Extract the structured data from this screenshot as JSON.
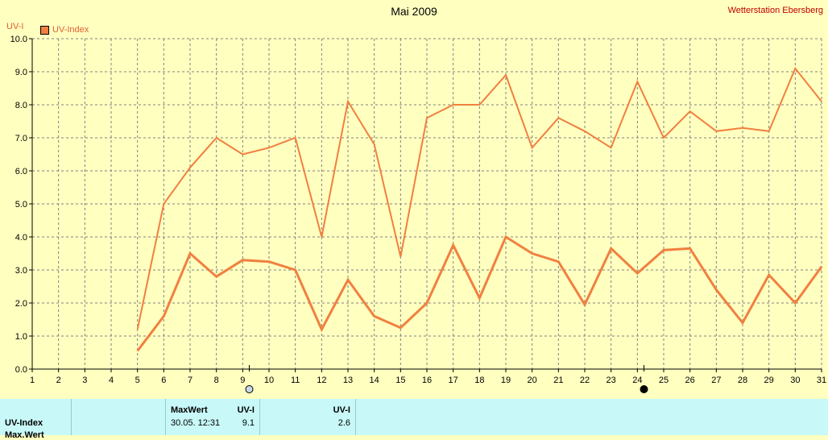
{
  "title": "Mai 2009",
  "station": "Wetterstation Ebersberg",
  "y_unit": "UV-I",
  "legend_label": "UV-Index",
  "colors": {
    "background": "#ffffc0",
    "series": "#f08040",
    "axis": "#000000",
    "grid": "#808080",
    "footer": "#c8f8f8",
    "station_text": "#c00000"
  },
  "chart_data": {
    "type": "line",
    "title": "Mai 2009",
    "ylabel": "UV-I",
    "xlabel": "",
    "x": [
      1,
      2,
      3,
      4,
      5,
      6,
      7,
      8,
      9,
      10,
      11,
      12,
      13,
      14,
      15,
      16,
      17,
      18,
      19,
      20,
      21,
      22,
      23,
      24,
      25,
      26,
      27,
      28,
      29,
      30,
      31
    ],
    "xlim": [
      1,
      31
    ],
    "ylim": [
      0,
      10
    ],
    "yticks": [
      "0.0",
      "1.0",
      "2.0",
      "3.0",
      "4.0",
      "5.0",
      "6.0",
      "7.0",
      "8.0",
      "9.0",
      "10.0"
    ],
    "grid": true,
    "series": [
      {
        "name": "UV-Index",
        "role": "max",
        "values": [
          null,
          null,
          null,
          null,
          1.2,
          5.0,
          6.1,
          7.0,
          6.5,
          6.7,
          7.0,
          4.0,
          8.1,
          6.8,
          3.4,
          7.6,
          8.0,
          8.0,
          8.9,
          6.7,
          7.6,
          7.2,
          6.7,
          8.7,
          7.0,
          7.8,
          7.2,
          7.3,
          7.2,
          9.1,
          8.1
        ]
      },
      {
        "name": "UV-Index",
        "role": "mean",
        "values": [
          null,
          null,
          null,
          null,
          0.55,
          1.6,
          3.5,
          2.8,
          3.3,
          3.25,
          3.0,
          1.2,
          2.7,
          1.6,
          1.25,
          2.0,
          3.75,
          2.15,
          4.0,
          3.5,
          3.25,
          1.95,
          3.65,
          2.9,
          3.6,
          3.65,
          2.4,
          1.4,
          2.85,
          2.0,
          3.1
        ]
      }
    ],
    "markers": [
      {
        "day": 9,
        "style": "open"
      },
      {
        "day": 24,
        "style": "filled"
      }
    ]
  },
  "footer": {
    "row1_label": "UV-Index",
    "row2_label": "Max.Wert",
    "header_maxwert": "MaxWert",
    "header_uvi": "UV-I",
    "header_uvi_2": "UV-I",
    "max_datetime": "30.05.  12:31",
    "max_value": "9.1",
    "mean_value": "2.6"
  }
}
